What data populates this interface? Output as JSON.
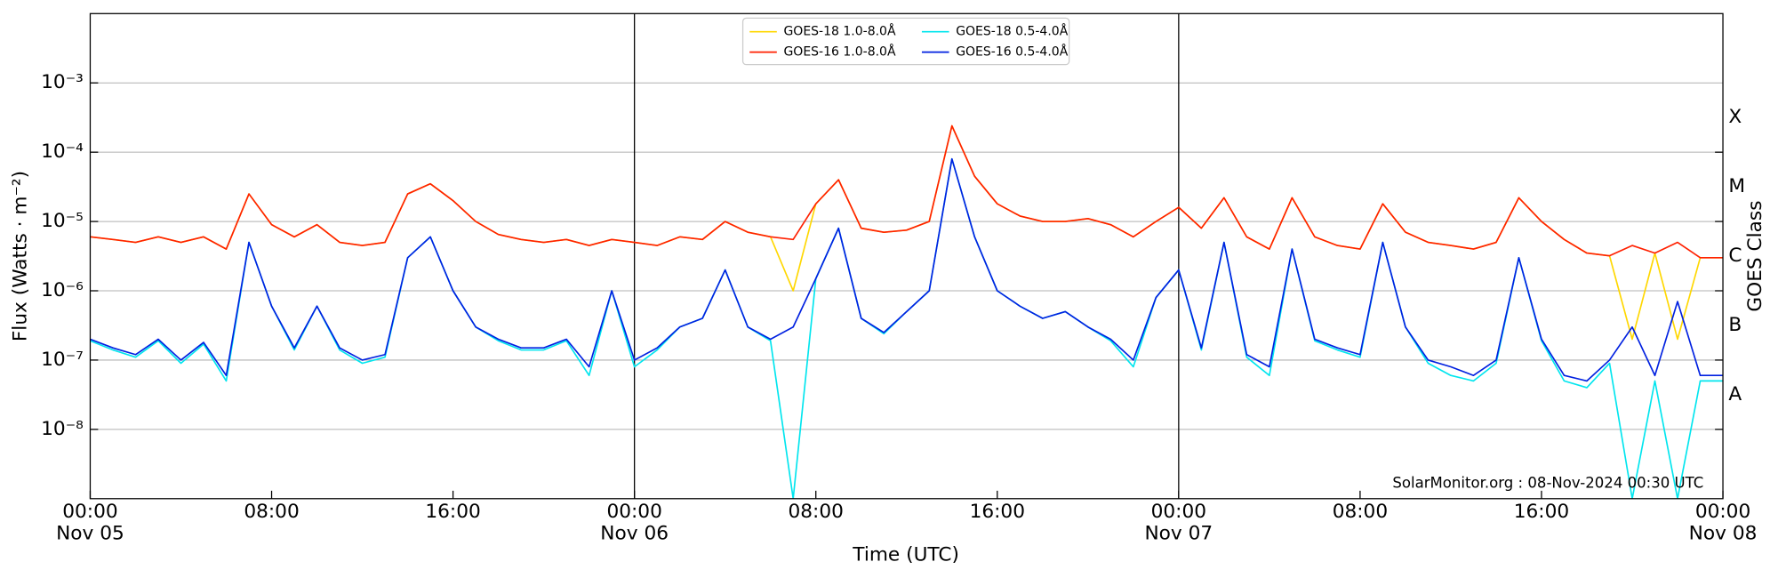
{
  "chart_data": {
    "type": "line",
    "x_label": "Time (UTC)",
    "y_label": "Flux (Watts · m⁻²)",
    "y2_label": "GOES Class",
    "annotation": "SolarMonitor.org : 08-Nov-2024 00:30 UTC",
    "log_y": true,
    "grid": true,
    "legend": "upper center",
    "xlim": [
      0,
      72
    ],
    "ylim": [
      1e-09,
      0.01
    ],
    "y2lim": [
      1e-09,
      0.01
    ],
    "day_lines": [
      24,
      48
    ],
    "xticks": [
      {
        "value": 0,
        "label": [
          "00:00",
          "Nov 05"
        ]
      },
      {
        "value": 8,
        "label": "08:00"
      },
      {
        "value": 16,
        "label": "16:00"
      },
      {
        "value": 24,
        "label": [
          "00:00",
          "Nov 06"
        ]
      },
      {
        "value": 32,
        "label": "08:00"
      },
      {
        "value": 40,
        "label": "16:00"
      },
      {
        "value": 48,
        "label": [
          "00:00",
          "Nov 07"
        ]
      },
      {
        "value": 56,
        "label": "08:00"
      },
      {
        "value": 64,
        "label": "16:00"
      },
      {
        "value": 72,
        "label": [
          "00:00",
          "Nov 08"
        ]
      }
    ],
    "yticks": [
      {
        "value": 1e-08,
        "label": "10⁻⁸"
      },
      {
        "value": 1e-07,
        "label": "10⁻⁷"
      },
      {
        "value": 1e-06,
        "label": "10⁻⁶"
      },
      {
        "value": 1e-05,
        "label": "10⁻⁵"
      },
      {
        "value": 0.0001,
        "label": "10⁻⁴"
      },
      {
        "value": 0.001,
        "label": "10⁻³"
      }
    ],
    "y2ticks": [
      {
        "value": 1e-08,
        "label": "A"
      },
      {
        "value": 1e-07,
        "label": "B"
      },
      {
        "value": 1e-06,
        "label": "C"
      },
      {
        "value": 1e-05,
        "label": "M"
      },
      {
        "value": 0.0001,
        "label": "X"
      }
    ],
    "x": [
      0,
      1,
      2,
      3,
      4,
      5,
      6,
      7,
      8,
      9,
      10,
      11,
      12,
      13,
      14,
      15,
      16,
      17,
      18,
      19,
      20,
      21,
      22,
      23,
      24,
      25,
      26,
      27,
      28,
      29,
      30,
      31,
      32,
      33,
      34,
      35,
      36,
      37,
      38,
      39,
      40,
      41,
      42,
      43,
      44,
      45,
      46,
      47,
      48,
      49,
      50,
      51,
      52,
      53,
      54,
      55,
      56,
      57,
      58,
      59,
      60,
      61,
      62,
      63,
      64,
      65,
      66,
      67,
      68,
      69,
      70,
      71,
      72
    ],
    "series": [
      {
        "name": "GOES-18 1.0-8.0Å",
        "color": "#ffd700",
        "values": [
          6e-06,
          5.5e-06,
          5e-06,
          6e-06,
          5e-06,
          6e-06,
          4e-06,
          2.5e-05,
          9e-06,
          6e-06,
          9e-06,
          5e-06,
          4.5e-06,
          5e-06,
          2.5e-05,
          3.5e-05,
          2e-05,
          1e-05,
          6.5e-06,
          5.5e-06,
          5e-06,
          5.5e-06,
          4.5e-06,
          5.5e-06,
          5e-06,
          4.5e-06,
          6e-06,
          5.5e-06,
          1e-05,
          7e-06,
          6e-06,
          1e-06,
          1.8e-05,
          4e-05,
          8e-06,
          7e-06,
          7.5e-06,
          1e-05,
          0.00024,
          4.5e-05,
          1.8e-05,
          1.2e-05,
          1e-05,
          1e-05,
          1.1e-05,
          9e-06,
          6e-06,
          1e-05,
          1.6e-05,
          8e-06,
          2.2e-05,
          6e-06,
          4e-06,
          2.2e-05,
          6e-06,
          4.5e-06,
          4e-06,
          1.8e-05,
          7e-06,
          5e-06,
          4.5e-06,
          4e-06,
          5e-06,
          2.2e-05,
          1e-05,
          5.5e-06,
          3.5e-06,
          3.2e-06,
          2e-07,
          3.5e-06,
          2e-07,
          3e-06,
          3e-06
        ]
      },
      {
        "name": "GOES-16 1.0-8.0Å",
        "color": "#ff2000",
        "values": [
          6e-06,
          5.5e-06,
          5e-06,
          6e-06,
          5e-06,
          6e-06,
          4e-06,
          2.5e-05,
          9e-06,
          6e-06,
          9e-06,
          5e-06,
          4.5e-06,
          5e-06,
          2.5e-05,
          3.5e-05,
          2e-05,
          1e-05,
          6.5e-06,
          5.5e-06,
          5e-06,
          5.5e-06,
          4.5e-06,
          5.5e-06,
          5e-06,
          4.5e-06,
          6e-06,
          5.5e-06,
          1e-05,
          7e-06,
          6e-06,
          5.5e-06,
          1.8e-05,
          4e-05,
          8e-06,
          7e-06,
          7.5e-06,
          1e-05,
          0.00024,
          4.5e-05,
          1.8e-05,
          1.2e-05,
          1e-05,
          1e-05,
          1.1e-05,
          9e-06,
          6e-06,
          1e-05,
          1.6e-05,
          8e-06,
          2.2e-05,
          6e-06,
          4e-06,
          2.2e-05,
          6e-06,
          4.5e-06,
          4e-06,
          1.8e-05,
          7e-06,
          5e-06,
          4.5e-06,
          4e-06,
          5e-06,
          2.2e-05,
          1e-05,
          5.5e-06,
          3.5e-06,
          3.2e-06,
          4.5e-06,
          3.5e-06,
          5e-06,
          3e-06,
          3e-06
        ]
      },
      {
        "name": "GOES-18 0.5-4.0Å",
        "color": "#00e5ee",
        "values": [
          1.9e-07,
          1.4e-07,
          1.1e-07,
          1.9e-07,
          9e-08,
          1.7e-07,
          5e-08,
          5e-06,
          6e-07,
          1.4e-07,
          6e-07,
          1.4e-07,
          9e-08,
          1.1e-07,
          3e-06,
          6e-06,
          1e-06,
          3e-07,
          1.9e-07,
          1.4e-07,
          1.4e-07,
          1.9e-07,
          6e-08,
          1e-06,
          8e-08,
          1.4e-07,
          3e-07,
          4e-07,
          2e-06,
          3e-07,
          1.9e-07,
          1e-09,
          1.5e-06,
          8e-06,
          4e-07,
          2.4e-07,
          5e-07,
          1e-06,
          8e-05,
          6e-06,
          1e-06,
          6e-07,
          4e-07,
          5e-07,
          3e-07,
          1.9e-07,
          8e-08,
          8e-07,
          2e-06,
          1.4e-07,
          5e-06,
          1.1e-07,
          6e-08,
          4e-06,
          1.9e-07,
          1.4e-07,
          1.1e-07,
          5e-06,
          3e-07,
          9e-08,
          6e-08,
          5e-08,
          9e-08,
          3e-06,
          1.9e-07,
          5e-08,
          4e-08,
          9e-08,
          1e-09,
          5e-08,
          1e-09,
          5e-08,
          5e-08
        ]
      },
      {
        "name": "GOES-16 0.5-4.0Å",
        "color": "#0020e0",
        "values": [
          2e-07,
          1.5e-07,
          1.2e-07,
          2e-07,
          1e-07,
          1.8e-07,
          6e-08,
          5e-06,
          6e-07,
          1.5e-07,
          6e-07,
          1.5e-07,
          1e-07,
          1.2e-07,
          3e-06,
          6e-06,
          1e-06,
          3e-07,
          2e-07,
          1.5e-07,
          1.5e-07,
          2e-07,
          8e-08,
          1e-06,
          1e-07,
          1.5e-07,
          3e-07,
          4e-07,
          2e-06,
          3e-07,
          2e-07,
          3e-07,
          1.5e-06,
          8e-06,
          4e-07,
          2.5e-07,
          5e-07,
          1e-06,
          8e-05,
          6e-06,
          1e-06,
          6e-07,
          4e-07,
          5e-07,
          3e-07,
          2e-07,
          1e-07,
          8e-07,
          2e-06,
          1.5e-07,
          5e-06,
          1.2e-07,
          8e-08,
          4e-06,
          2e-07,
          1.5e-07,
          1.2e-07,
          5e-06,
          3e-07,
          1e-07,
          8e-08,
          6e-08,
          1e-07,
          3e-06,
          2e-07,
          6e-08,
          5e-08,
          1e-07,
          3e-07,
          6e-08,
          7e-07,
          6e-08,
          6e-08
        ]
      }
    ]
  }
}
